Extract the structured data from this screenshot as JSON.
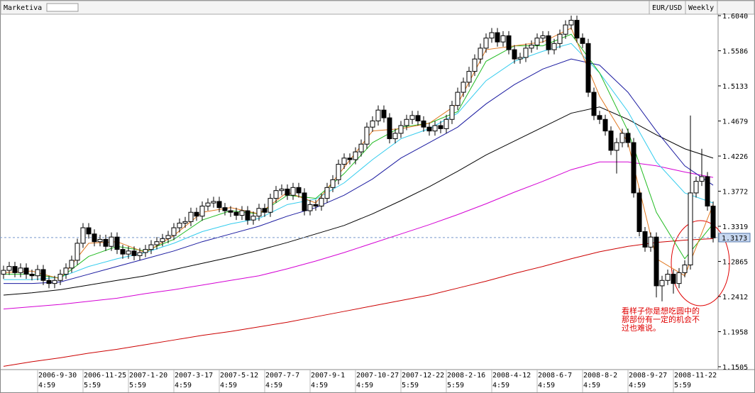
{
  "header": {
    "app": "Marketiva",
    "symbol": "EUR/USD",
    "period": "Weekly"
  },
  "chart_data": {
    "type": "candlestick",
    "xlim": [
      -0.625,
      125.875
    ],
    "ylim": [
      1.1468,
      1.6077
    ],
    "yticks": [
      {
        "value": 1.604,
        "label": "1.6040"
      },
      1.5586,
      1.5133,
      1.4679,
      1.4226,
      1.3772,
      1.3319,
      1.2865,
      1.2412,
      1.1958,
      1.1505
    ],
    "xticks": [
      {
        "value": 6,
        "label": "2006-9-30",
        "time": "4:59"
      },
      {
        "value": 14,
        "label": "2006-11-25",
        "time": "5:59"
      },
      {
        "value": 22,
        "label": "2007-1-20",
        "time": "5:59"
      },
      {
        "value": 30,
        "label": "2007-3-17",
        "time": "4:59"
      },
      {
        "value": 38,
        "label": "2007-5-12",
        "time": "4:59"
      },
      {
        "value": 46,
        "label": "2007-7-7",
        "time": "4:59"
      },
      {
        "value": 54,
        "label": "2007-9-1",
        "time": "4:59"
      },
      {
        "value": 62,
        "label": "2007-10-27",
        "time": "4:59"
      },
      {
        "value": 70,
        "label": "2007-12-22",
        "time": "5:59"
      },
      {
        "value": 78,
        "label": "2008-2-16",
        "time": "5:59"
      },
      {
        "value": 86,
        "label": "2008-4-12",
        "time": "4:59"
      },
      {
        "value": 94,
        "label": "2008-6-7",
        "time": "4:59"
      },
      {
        "value": 102,
        "label": "2008-8-2",
        "time": "4:59"
      },
      {
        "value": 110,
        "label": "2008-9-27",
        "time": "4:59"
      },
      {
        "value": 118,
        "label": "2008-11-22",
        "time": "5:59"
      }
    ],
    "last_price": 1.3173,
    "up_color": "#ffffff",
    "down_color": "#000000",
    "candles": {
      "open": [
        1.27,
        1.275,
        1.28,
        1.272,
        1.278,
        1.27,
        1.268,
        1.276,
        1.262,
        1.258,
        1.262,
        1.27,
        1.278,
        1.288,
        1.31,
        1.33,
        1.322,
        1.312,
        1.315,
        1.306,
        1.318,
        1.302,
        1.296,
        1.3,
        1.294,
        1.298,
        1.302,
        1.308,
        1.312,
        1.316,
        1.32,
        1.33,
        1.336,
        1.338,
        1.35,
        1.345,
        1.358,
        1.362,
        1.364,
        1.356,
        1.352,
        1.35,
        1.346,
        1.352,
        1.34,
        1.345,
        1.355,
        1.35,
        1.368,
        1.378,
        1.38,
        1.372,
        1.382,
        1.375,
        1.352,
        1.36,
        1.358,
        1.368,
        1.382,
        1.392,
        1.412,
        1.42,
        1.418,
        1.428,
        1.438,
        1.46,
        1.468,
        1.482,
        1.472,
        1.445,
        1.452,
        1.462,
        1.47,
        1.475,
        1.468,
        1.46,
        1.455,
        1.462,
        1.458,
        1.47,
        1.488,
        1.505,
        1.518,
        1.532,
        1.548,
        1.562,
        1.575,
        1.582,
        1.57,
        1.578,
        1.56,
        1.548,
        1.55,
        1.562,
        1.566,
        1.575,
        1.578,
        1.56,
        1.568,
        1.58,
        1.592,
        1.598,
        1.575,
        1.568,
        1.505,
        1.475,
        1.47,
        1.455,
        1.43,
        1.44,
        1.452,
        1.44,
        1.375,
        1.325,
        1.305,
        1.318,
        1.255,
        1.262,
        1.27,
        1.258,
        1.272,
        1.282,
        1.375,
        1.39,
        1.396,
        1.358
      ],
      "high": [
        1.281,
        1.286,
        1.286,
        1.284,
        1.284,
        1.276,
        1.282,
        1.282,
        1.268,
        1.268,
        1.276,
        1.284,
        1.294,
        1.316,
        1.336,
        1.336,
        1.328,
        1.321,
        1.321,
        1.324,
        1.324,
        1.308,
        1.306,
        1.306,
        1.304,
        1.308,
        1.314,
        1.318,
        1.322,
        1.326,
        1.336,
        1.342,
        1.344,
        1.356,
        1.356,
        1.364,
        1.368,
        1.37,
        1.37,
        1.362,
        1.358,
        1.356,
        1.358,
        1.358,
        1.351,
        1.361,
        1.361,
        1.374,
        1.384,
        1.386,
        1.386,
        1.388,
        1.388,
        1.381,
        1.366,
        1.366,
        1.374,
        1.388,
        1.398,
        1.418,
        1.426,
        1.426,
        1.434,
        1.444,
        1.466,
        1.474,
        1.488,
        1.488,
        1.478,
        1.458,
        1.468,
        1.476,
        1.481,
        1.481,
        1.474,
        1.466,
        1.468,
        1.468,
        1.476,
        1.494,
        1.511,
        1.524,
        1.538,
        1.554,
        1.568,
        1.581,
        1.588,
        1.588,
        1.584,
        1.584,
        1.566,
        1.556,
        1.568,
        1.572,
        1.581,
        1.584,
        1.584,
        1.574,
        1.586,
        1.598,
        1.604,
        1.604,
        1.581,
        1.574,
        1.511,
        1.481,
        1.476,
        1.461,
        1.446,
        1.458,
        1.458,
        1.446,
        1.381,
        1.331,
        1.324,
        1.324,
        1.268,
        1.276,
        1.276,
        1.278,
        1.288,
        1.475,
        1.396,
        1.432,
        1.402,
        1.364
      ],
      "low": [
        1.264,
        1.269,
        1.266,
        1.266,
        1.264,
        1.262,
        1.262,
        1.256,
        1.252,
        1.252,
        1.256,
        1.264,
        1.272,
        1.282,
        1.304,
        1.316,
        1.306,
        1.306,
        1.3,
        1.3,
        1.296,
        1.29,
        1.29,
        1.288,
        1.288,
        1.292,
        1.296,
        1.302,
        1.306,
        1.31,
        1.314,
        1.324,
        1.33,
        1.332,
        1.339,
        1.339,
        1.352,
        1.356,
        1.35,
        1.346,
        1.344,
        1.34,
        1.34,
        1.334,
        1.334,
        1.339,
        1.344,
        1.344,
        1.362,
        1.372,
        1.366,
        1.366,
        1.369,
        1.346,
        1.346,
        1.352,
        1.352,
        1.362,
        1.376,
        1.386,
        1.406,
        1.412,
        1.412,
        1.422,
        1.432,
        1.454,
        1.462,
        1.466,
        1.439,
        1.439,
        1.446,
        1.456,
        1.464,
        1.462,
        1.454,
        1.449,
        1.449,
        1.452,
        1.452,
        1.464,
        1.482,
        1.499,
        1.512,
        1.526,
        1.542,
        1.556,
        1.569,
        1.564,
        1.564,
        1.554,
        1.542,
        1.542,
        1.544,
        1.556,
        1.56,
        1.569,
        1.554,
        1.554,
        1.562,
        1.574,
        1.586,
        1.569,
        1.562,
        1.499,
        1.469,
        1.464,
        1.449,
        1.424,
        1.4,
        1.434,
        1.434,
        1.369,
        1.319,
        1.299,
        1.299,
        1.24,
        1.235,
        1.256,
        1.245,
        1.252,
        1.266,
        1.276,
        1.369,
        1.384,
        1.352,
        1.311
      ],
      "close": [
        1.275,
        1.28,
        1.272,
        1.278,
        1.27,
        1.268,
        1.276,
        1.262,
        1.258,
        1.262,
        1.27,
        1.278,
        1.288,
        1.31,
        1.33,
        1.322,
        1.312,
        1.315,
        1.306,
        1.318,
        1.302,
        1.296,
        1.3,
        1.294,
        1.298,
        1.302,
        1.308,
        1.312,
        1.316,
        1.32,
        1.33,
        1.336,
        1.338,
        1.35,
        1.345,
        1.358,
        1.362,
        1.364,
        1.356,
        1.352,
        1.35,
        1.346,
        1.352,
        1.34,
        1.345,
        1.355,
        1.35,
        1.368,
        1.378,
        1.38,
        1.372,
        1.382,
        1.375,
        1.352,
        1.36,
        1.358,
        1.368,
        1.382,
        1.392,
        1.412,
        1.42,
        1.418,
        1.428,
        1.438,
        1.46,
        1.468,
        1.482,
        1.472,
        1.445,
        1.452,
        1.462,
        1.47,
        1.475,
        1.468,
        1.46,
        1.455,
        1.462,
        1.458,
        1.47,
        1.488,
        1.505,
        1.518,
        1.532,
        1.548,
        1.562,
        1.575,
        1.582,
        1.57,
        1.578,
        1.56,
        1.548,
        1.55,
        1.562,
        1.566,
        1.575,
        1.578,
        1.56,
        1.568,
        1.58,
        1.592,
        1.598,
        1.575,
        1.568,
        1.505,
        1.475,
        1.47,
        1.455,
        1.43,
        1.44,
        1.452,
        1.44,
        1.375,
        1.325,
        1.305,
        1.318,
        1.255,
        1.262,
        1.27,
        1.258,
        1.272,
        1.282,
        1.375,
        1.39,
        1.396,
        1.358,
        1.317
      ]
    },
    "lines": {
      "x": [
        0,
        5,
        10,
        15,
        20,
        25,
        30,
        35,
        40,
        45,
        50,
        55,
        60,
        65,
        70,
        75,
        80,
        85,
        90,
        95,
        100,
        105,
        110,
        115,
        120,
        125
      ],
      "series": [
        {
          "color": "#cc0000",
          "values": [
            1.151,
            1.157,
            1.162,
            1.168,
            1.173,
            1.179,
            1.185,
            1.191,
            1.196,
            1.202,
            1.208,
            1.215,
            1.222,
            1.229,
            1.236,
            1.243,
            1.252,
            1.261,
            1.271,
            1.28,
            1.29,
            1.299,
            1.306,
            1.311,
            1.314,
            1.316
          ]
        },
        {
          "color": "#d400d4",
          "values": [
            1.225,
            1.228,
            1.231,
            1.235,
            1.239,
            1.245,
            1.25,
            1.256,
            1.262,
            1.268,
            1.277,
            1.287,
            1.298,
            1.31,
            1.322,
            1.334,
            1.347,
            1.361,
            1.376,
            1.39,
            1.405,
            1.415,
            1.415,
            1.41,
            1.402,
            1.395
          ]
        },
        {
          "color": "#000000",
          "values": [
            1.243,
            1.246,
            1.25,
            1.256,
            1.262,
            1.268,
            1.276,
            1.284,
            1.292,
            1.301,
            1.311,
            1.322,
            1.333,
            1.348,
            1.365,
            1.383,
            1.403,
            1.424,
            1.442,
            1.46,
            1.478,
            1.486,
            1.47,
            1.45,
            1.432,
            1.42
          ]
        },
        {
          "color": "#1a1aa0",
          "values": [
            1.258,
            1.258,
            1.26,
            1.27,
            1.28,
            1.29,
            1.3,
            1.312,
            1.322,
            1.332,
            1.345,
            1.356,
            1.372,
            1.393,
            1.42,
            1.44,
            1.46,
            1.49,
            1.515,
            1.535,
            1.548,
            1.54,
            1.505,
            1.455,
            1.41,
            1.385
          ]
        },
        {
          "color": "#33ccee",
          "values": [
            1.263,
            1.263,
            1.266,
            1.28,
            1.29,
            1.298,
            1.31,
            1.325,
            1.335,
            1.342,
            1.36,
            1.367,
            1.388,
            1.418,
            1.445,
            1.458,
            1.478,
            1.52,
            1.545,
            1.558,
            1.568,
            1.53,
            1.48,
            1.415,
            1.375,
            1.362
          ]
        },
        {
          "color": "#22bb22",
          "values": [
            1.27,
            1.27,
            1.265,
            1.293,
            1.306,
            1.3,
            1.315,
            1.34,
            1.352,
            1.348,
            1.372,
            1.368,
            1.4,
            1.44,
            1.46,
            1.465,
            1.48,
            1.545,
            1.565,
            1.565,
            1.58,
            1.53,
            1.455,
            1.35,
            1.29,
            1.335
          ]
        },
        {
          "color": "#e07820",
          "values": [
            1.272,
            1.274,
            1.264,
            1.31,
            1.312,
            1.298,
            1.32,
            1.35,
            1.356,
            1.348,
            1.376,
            1.362,
            1.408,
            1.455,
            1.458,
            1.465,
            1.49,
            1.56,
            1.565,
            1.57,
            1.588,
            1.5,
            1.44,
            1.29,
            1.268,
            1.36
          ]
        }
      ]
    },
    "annotation": [
      "看样子你是想吃圆中的",
      "那部份有一定的机会不",
      "过也难说。"
    ]
  }
}
